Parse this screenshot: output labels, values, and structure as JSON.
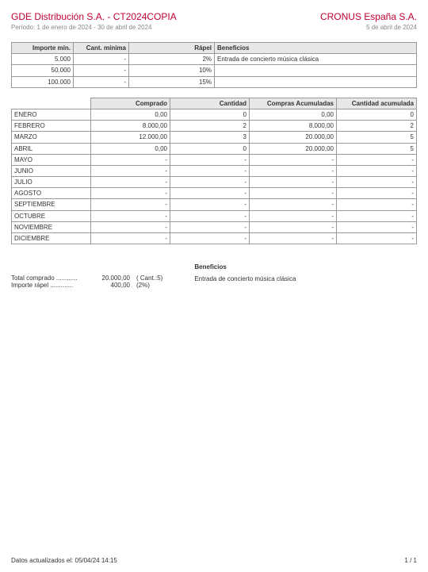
{
  "header": {
    "title": "GDE Distribución S.A. - CT2024COPIA",
    "period": "Período: 1 de enero de 2024 - 30 de abril de 2024",
    "company": "CRONUS España S.A.",
    "date": "5 de abril de 2024"
  },
  "tiers": {
    "columns": [
      "Importe mín.",
      "Cant. mínima",
      "Rápel",
      "Beneficios"
    ],
    "rows": [
      {
        "min": "5.000",
        "qty": "-",
        "rapel": "2%",
        "benef": "Entrada de concierto música clásica"
      },
      {
        "min": "50.000",
        "qty": "-",
        "rapel": "10%",
        "benef": ""
      },
      {
        "min": "100.000",
        "qty": "-",
        "rapel": "15%",
        "benef": ""
      }
    ]
  },
  "months": {
    "columns": [
      "",
      "Comprado",
      "Cantidad",
      "Compras Acumuladas",
      "Cantidad acumulada"
    ],
    "rows": [
      {
        "m": "ENERO",
        "c1": "0,00",
        "c2": "0",
        "c3": "0,00",
        "c4": "0"
      },
      {
        "m": "FEBRERO",
        "c1": "8.000,00",
        "c2": "2",
        "c3": "8.000,00",
        "c4": "2"
      },
      {
        "m": "MARZO",
        "c1": "12.000,00",
        "c2": "3",
        "c3": "20.000,00",
        "c4": "5"
      },
      {
        "m": "ABRIL",
        "c1": "0,00",
        "c2": "0",
        "c3": "20.000,00",
        "c4": "5"
      },
      {
        "m": "MAYO",
        "c1": "-",
        "c2": "-",
        "c3": "-",
        "c4": "-"
      },
      {
        "m": "JUNIO",
        "c1": "-",
        "c2": "-",
        "c3": "-",
        "c4": "-"
      },
      {
        "m": "JULIO",
        "c1": "-",
        "c2": "-",
        "c3": "-",
        "c4": "-"
      },
      {
        "m": "AGOSTO",
        "c1": "-",
        "c2": "-",
        "c3": "-",
        "c4": "-"
      },
      {
        "m": "SEPTIEMBRE",
        "c1": "-",
        "c2": "-",
        "c3": "-",
        "c4": "-"
      },
      {
        "m": "OCTUBRE",
        "c1": "-",
        "c2": "-",
        "c3": "-",
        "c4": "-"
      },
      {
        "m": "NOVIEMBRE",
        "c1": "-",
        "c2": "-",
        "c3": "-",
        "c4": "-"
      },
      {
        "m": "DICIEMBRE",
        "c1": "-",
        "c2": "-",
        "c3": "-",
        "c4": "-"
      }
    ]
  },
  "summary": {
    "total_label": "Total comprado ............",
    "total_value": "20.000,00",
    "total_extra": "( Cant.:5)",
    "rapel_label": "Importe rápel .............",
    "rapel_value": "400,00",
    "rapel_extra": "(2%)",
    "benef_header": "Beneficios",
    "benef_text": "Entrada de concierto música clásica"
  },
  "footer": {
    "updated": "Datos actualizados el: 05/04/24 14:15",
    "page": "1 / 1"
  }
}
